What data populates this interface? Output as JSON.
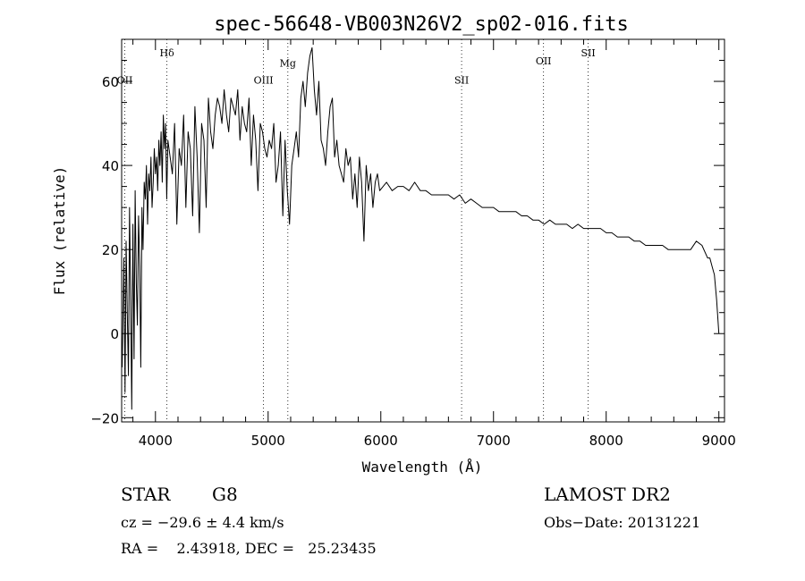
{
  "chart_data": {
    "type": "line",
    "title": "spec-56648-VB003N26V2_sp02-016.fits",
    "xlabel": "Wavelength (Å)",
    "ylabel": "Flux (relative)",
    "xlim": [
      3700,
      9050
    ],
    "ylim": [
      -21,
      70
    ],
    "xticks": [
      4000,
      5000,
      6000,
      7000,
      8000,
      9000
    ],
    "yticks": [
      -20,
      0,
      20,
      40,
      60
    ],
    "line_color": "#000000",
    "lines": [
      {
        "label": "Hδ",
        "x": 4102,
        "label_flux": 66
      },
      {
        "label": "OIII",
        "x": 4959,
        "label_flux": 59.5
      },
      {
        "label": "Mg",
        "x": 5175,
        "label_flux": 63.5
      },
      {
        "label": "SII",
        "x": 6717,
        "label_flux": 59.5
      },
      {
        "label": "OII",
        "x": 7444,
        "label_flux": 64
      },
      {
        "label": "SII",
        "x": 7840,
        "label_flux": 66
      },
      {
        "label": "OII",
        "x": 3728,
        "label_flux": 59.5
      }
    ],
    "series": [
      {
        "x": [
          3705,
          3720,
          3730,
          3740,
          3750,
          3760,
          3770,
          3780,
          3790,
          3800,
          3810,
          3820,
          3830,
          3840,
          3850,
          3860,
          3870,
          3880,
          3890,
          3900,
          3910,
          3920,
          3930,
          3940,
          3950,
          3960,
          3970,
          3980,
          3990,
          4000,
          4010,
          4020,
          4030,
          4040,
          4050,
          4060,
          4070,
          4080,
          4090,
          4100,
          4110,
          4130,
          4150,
          4170,
          4190,
          4210,
          4230,
          4250,
          4270,
          4290,
          4310,
          4330,
          4350,
          4370,
          4390,
          4410,
          4430,
          4450,
          4470,
          4490,
          4510,
          4530,
          4550,
          4570,
          4590,
          4610,
          4630,
          4650,
          4670,
          4690,
          4710,
          4730,
          4750,
          4770,
          4790,
          4810,
          4830,
          4850,
          4870,
          4890,
          4910,
          4930,
          4950,
          4970,
          4990,
          5010,
          5030,
          5050,
          5070,
          5090,
          5110,
          5130,
          5150,
          5170,
          5190,
          5210,
          5230,
          5250,
          5270,
          5290,
          5310,
          5330,
          5350,
          5370,
          5390,
          5410,
          5430,
          5450,
          5470,
          5490,
          5510,
          5530,
          5550,
          5570,
          5590,
          5610,
          5630,
          5650,
          5670,
          5690,
          5710,
          5730,
          5750,
          5770,
          5790,
          5810,
          5830,
          5850,
          5870,
          5890,
          5910,
          5930,
          5950,
          5970,
          5990,
          6050,
          6100,
          6150,
          6200,
          6250,
          6300,
          6350,
          6400,
          6450,
          6500,
          6550,
          6600,
          6650,
          6700,
          6750,
          6800,
          6850,
          6900,
          6950,
          7000,
          7050,
          7100,
          7150,
          7200,
          7250,
          7300,
          7350,
          7400,
          7450,
          7500,
          7550,
          7600,
          7650,
          7700,
          7750,
          7800,
          7850,
          7900,
          7950,
          8000,
          8050,
          8100,
          8150,
          8200,
          8250,
          8300,
          8350,
          8400,
          8450,
          8500,
          8550,
          8600,
          8650,
          8700,
          8750,
          8800,
          8850,
          8900,
          8920,
          8940,
          8960,
          8980,
          9000
        ],
        "y": [
          -8,
          18,
          -14,
          22,
          5,
          -10,
          30,
          8,
          -18,
          26,
          -6,
          34,
          12,
          2,
          28,
          16,
          -8,
          30,
          20,
          36,
          32,
          40,
          26,
          38,
          34,
          42,
          30,
          36,
          44,
          38,
          42,
          34,
          46,
          40,
          48,
          36,
          52,
          44,
          50,
          32,
          46,
          42,
          38,
          50,
          26,
          44,
          40,
          52,
          30,
          48,
          44,
          28,
          54,
          42,
          24,
          50,
          46,
          30,
          56,
          48,
          44,
          52,
          56,
          54,
          50,
          58,
          52,
          48,
          56,
          54,
          52,
          58,
          46,
          54,
          50,
          48,
          56,
          40,
          52,
          46,
          34,
          50,
          48,
          44,
          42,
          46,
          44,
          50,
          36,
          40,
          48,
          28,
          46,
          34,
          26,
          40,
          44,
          48,
          42,
          56,
          60,
          54,
          62,
          66,
          68,
          58,
          52,
          60,
          46,
          44,
          40,
          48,
          54,
          56,
          42,
          46,
          40,
          38,
          36,
          44,
          40,
          42,
          32,
          38,
          30,
          42,
          36,
          22,
          40,
          34,
          38,
          30,
          36,
          38,
          34,
          36,
          34,
          35,
          35,
          34,
          36,
          34,
          34,
          33,
          33,
          33,
          33,
          32,
          33,
          31,
          32,
          31,
          30,
          30,
          30,
          29,
          29,
          29,
          29,
          28,
          28,
          27,
          27,
          26,
          27,
          26,
          26,
          26,
          25,
          26,
          25,
          25,
          25,
          25,
          24,
          24,
          23,
          23,
          23,
          22,
          22,
          21,
          21,
          21,
          21,
          20,
          20,
          20,
          20,
          20,
          22,
          21,
          18,
          18,
          16,
          14,
          8,
          0
        ]
      }
    ]
  },
  "info": {
    "object_class": "STAR",
    "subclass": "G8",
    "survey": "LAMOST DR2",
    "cz": "cz = −29.6 ± 4.4 km/s",
    "obs_date": "Obs−Date: 20131221",
    "radec": "RA =    2.43918, DEC =   25.23435"
  }
}
